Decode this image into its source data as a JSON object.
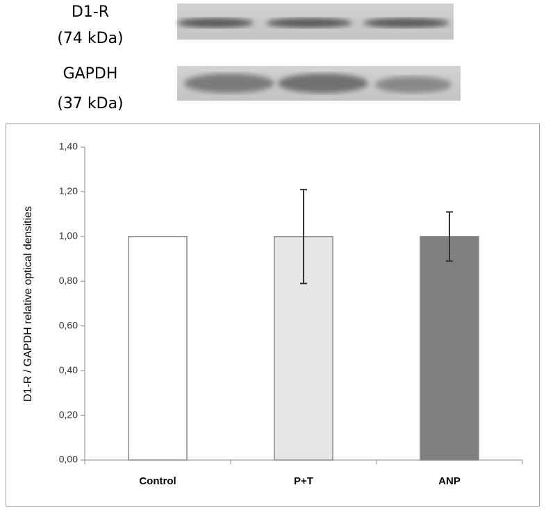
{
  "blots": [
    {
      "label": "D1-R",
      "size": "(74 kDa)"
    },
    {
      "label": "GAPDH",
      "size": "(37 kDa)"
    }
  ],
  "chart_data": {
    "type": "bar",
    "y_label": "D1-R / GAPDH relative optical densities",
    "categories": [
      "Control",
      "P+T",
      "ANP"
    ],
    "values": [
      1.0,
      1.0,
      1.0
    ],
    "errors": [
      null,
      0.21,
      0.11
    ],
    "colors": [
      "#ffffff",
      "#e6e6e6",
      "#808080"
    ],
    "ylim": [
      0,
      1.4
    ],
    "yticks": [
      {
        "value": 0,
        "label": "0,00"
      },
      {
        "value": 0.2,
        "label": "0,20"
      },
      {
        "value": 0.4,
        "label": "0,40"
      },
      {
        "value": 0.6,
        "label": "0,60"
      },
      {
        "value": 0.8,
        "label": "0,80"
      },
      {
        "value": 1.0,
        "label": "1,00"
      },
      {
        "value": 1.2,
        "label": "1,20"
      },
      {
        "value": 1.4,
        "label": "1,40"
      }
    ],
    "grid": false
  }
}
